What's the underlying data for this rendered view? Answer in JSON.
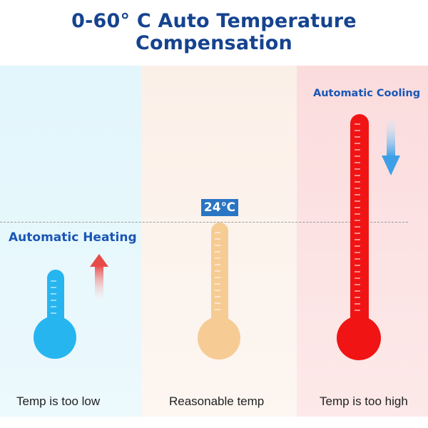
{
  "title": "0-60° C Auto Temperature Compensation",
  "badge": {
    "text": "24℃"
  },
  "labels": {
    "heating": "Automatic Heating",
    "cooling": "Automatic Cooling"
  },
  "captions": {
    "low": "Temp is too low",
    "reasonable": "Reasonable temp",
    "high": "Temp is too high"
  },
  "colors": {
    "title": "#15438f",
    "label_blue": "#1a56b5",
    "cold_thermometer": "#27b5f0",
    "mid_thermometer": "#f6cc94",
    "hot_thermometer": "#f01414",
    "heating_arrow": "#e85050",
    "cooling_arrow": "#4aa6e8",
    "panel_cold": "#e2f6fc",
    "panel_mid": "#fbf0e8",
    "panel_hot": "#fbdcdd"
  },
  "icons": [
    "thermometer-cold-icon",
    "thermometer-reasonable-icon",
    "thermometer-hot-icon",
    "arrow-up-icon",
    "arrow-down-icon"
  ]
}
